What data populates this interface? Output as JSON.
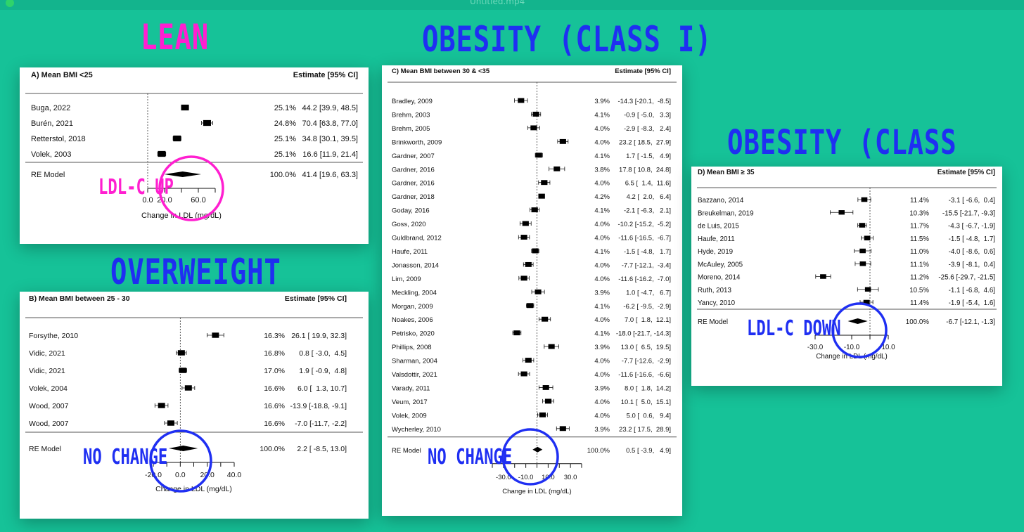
{
  "window": {
    "filename": "Untitled.mp4"
  },
  "categories": {
    "lean": "LEAN",
    "overweight": "OVERWEIGHT",
    "obesity1": "OBESITY (CLASS I)",
    "obesity2": "OBESITY (CLASS II)"
  },
  "annotations": {
    "lean": "LDL-C UP",
    "overweight": "NO CHANGE",
    "obesity1": "NO CHANGE",
    "obesity2": "LDL-C DOWN"
  },
  "colors": {
    "background": "#16c298",
    "pink": "#ff1fd0",
    "blue": "#1f2ff2"
  },
  "chart_data": [
    {
      "type": "forest",
      "title": "A) Mean BMI <25",
      "estimate_header": "Estimate [95% CI]",
      "xlabel": "Change in LDL (mg/dL)",
      "xlim": [
        0,
        80
      ],
      "ticks": [
        0,
        20,
        40,
        60,
        80
      ],
      "tick_labels": [
        "0.0",
        "20.0",
        "",
        "60.0",
        ""
      ],
      "studies": [
        {
          "label": "Buga, 2022",
          "weight": "25.1%",
          "est": 44.2,
          "lo": 39.9,
          "hi": 48.5,
          "ci_text": "44.2 [39.9, 48.5]"
        },
        {
          "label": "Burén, 2021",
          "weight": "24.8%",
          "est": 70.4,
          "lo": 63.8,
          "hi": 77.0,
          "ci_text": "70.4 [63.8, 77.0]"
        },
        {
          "label": "Retterstol, 2018",
          "weight": "25.1%",
          "est": 34.8,
          "lo": 30.1,
          "hi": 39.5,
          "ci_text": "34.8 [30.1, 39.5]"
        },
        {
          "label": "Volek, 2003",
          "weight": "25.1%",
          "est": 16.6,
          "lo": 11.9,
          "hi": 21.4,
          "ci_text": "16.6 [11.9, 21.4]"
        }
      ],
      "summary": {
        "label": "RE Model",
        "weight": "100.0%",
        "est": 41.4,
        "lo": 19.6,
        "hi": 63.3,
        "ci_text": "41.4 [19.6, 63.3]"
      }
    },
    {
      "type": "forest",
      "title": "B) Mean BMI between 25 - 30",
      "estimate_header": "Estimate [95% CI]",
      "xlabel": "Change in LDL (mg/dL)",
      "xlim": [
        -20,
        40
      ],
      "ticks": [
        -20,
        -10,
        0,
        10,
        20,
        30,
        40
      ],
      "tick_labels": [
        "-20.0",
        "",
        "0.0",
        "",
        "20.0",
        "",
        "40.0"
      ],
      "studies": [
        {
          "label": "Forsythe, 2010",
          "weight": "16.3%",
          "est": 26.1,
          "lo": 19.9,
          "hi": 32.3,
          "ci_text": "26.1 [ 19.9, 32.3]"
        },
        {
          "label": "Vidic, 2021",
          "weight": "16.8%",
          "est": 0.8,
          "lo": -3.0,
          "hi": 4.5,
          "ci_text": "0.8 [ -3.0,  4.5]"
        },
        {
          "label": "Vidic, 2021",
          "weight": "17.0%",
          "est": 1.9,
          "lo": -0.9,
          "hi": 4.8,
          "ci_text": "1.9 [ -0.9,  4.8]"
        },
        {
          "label": "Volek, 2004",
          "weight": "16.6%",
          "est": 6.0,
          "lo": 1.3,
          "hi": 10.7,
          "ci_text": "6.0 [  1.3, 10.7]"
        },
        {
          "label": "Wood, 2007",
          "weight": "16.6%",
          "est": -13.9,
          "lo": -18.8,
          "hi": -9.1,
          "ci_text": "-13.9 [-18.8, -9.1]"
        },
        {
          "label": "Wood, 2007",
          "weight": "16.6%",
          "est": -7.0,
          "lo": -11.7,
          "hi": -2.2,
          "ci_text": "-7.0 [-11.7, -2.2]"
        }
      ],
      "summary": {
        "label": "RE Model",
        "weight": "100.0%",
        "est": 2.2,
        "lo": -8.5,
        "hi": 13.0,
        "ci_text": "2.2 [ -8.5, 13.0]"
      }
    },
    {
      "type": "forest",
      "title": "C) Mean BMI between 30 & <35",
      "estimate_header": "Estimate [95% CI]",
      "xlabel": "Change in LDL (mg/dL)",
      "xlim": [
        -40,
        40
      ],
      "ticks": [
        -40,
        -30,
        -20,
        -10,
        0,
        10,
        20,
        30,
        40
      ],
      "tick_labels": [
        "",
        "-30.0",
        "",
        "-10.0",
        "",
        "10.0",
        "",
        "30.0",
        ""
      ],
      "studies": [
        {
          "label": "Bradley, 2009",
          "weight": "3.9%",
          "est": -14.3,
          "lo": -20.1,
          "hi": -8.5,
          "ci_text": "-14.3 [-20.1,  -8.5]"
        },
        {
          "label": "Brehm, 2003",
          "weight": "4.1%",
          "est": -0.9,
          "lo": -5.0,
          "hi": 3.3,
          "ci_text": "-0.9 [ -5.0,   3.3]"
        },
        {
          "label": "Brehm, 2005",
          "weight": "4.0%",
          "est": -2.9,
          "lo": -8.3,
          "hi": 2.4,
          "ci_text": "-2.9 [ -8.3,   2.4]"
        },
        {
          "label": "Brinkworth, 2009",
          "weight": "4.0%",
          "est": 23.2,
          "lo": 18.5,
          "hi": 27.9,
          "ci_text": "23.2 [ 18.5,  27.9]"
        },
        {
          "label": "Gardner, 2007",
          "weight": "4.1%",
          "est": 1.7,
          "lo": -1.5,
          "hi": 4.9,
          "ci_text": "1.7 [ -1.5,   4.9]"
        },
        {
          "label": "Gardner, 2016",
          "weight": "3.8%",
          "est": 17.8,
          "lo": 10.8,
          "hi": 24.8,
          "ci_text": "17.8 [ 10.8,  24.8]"
        },
        {
          "label": "Gardner, 2016",
          "weight": "4.0%",
          "est": 6.5,
          "lo": 1.4,
          "hi": 11.6,
          "ci_text": "6.5 [  1.4,  11.6]"
        },
        {
          "label": "Gardner, 2018",
          "weight": "4.2%",
          "est": 4.2,
          "lo": 2.0,
          "hi": 6.4,
          "ci_text": "4.2 [  2.0,   6.4]"
        },
        {
          "label": "Goday, 2016",
          "weight": "4.1%",
          "est": -2.1,
          "lo": -6.3,
          "hi": 2.1,
          "ci_text": "-2.1 [ -6.3,   2.1]"
        },
        {
          "label": "Goss, 2020",
          "weight": "4.0%",
          "est": -10.2,
          "lo": -15.2,
          "hi": -5.2,
          "ci_text": "-10.2 [-15.2,  -5.2]"
        },
        {
          "label": "Guldbrand, 2012",
          "weight": "4.0%",
          "est": -11.6,
          "lo": -16.5,
          "hi": -6.7,
          "ci_text": "-11.6 [-16.5,  -6.7]"
        },
        {
          "label": "Haufe, 2011",
          "weight": "4.1%",
          "est": -1.5,
          "lo": -4.8,
          "hi": 1.7,
          "ci_text": "-1.5 [ -4.8,   1.7]"
        },
        {
          "label": "Jonasson, 2014",
          "weight": "4.0%",
          "est": -7.7,
          "lo": -12.1,
          "hi": -3.4,
          "ci_text": "-7.7 [-12.1,  -3.4]"
        },
        {
          "label": "Lim, 2009",
          "weight": "4.0%",
          "est": -11.6,
          "lo": -16.2,
          "hi": -7.0,
          "ci_text": "-11.6 [-16.2,  -7.0]"
        },
        {
          "label": "Meckling, 2004",
          "weight": "3.9%",
          "est": 1.0,
          "lo": -4.7,
          "hi": 6.7,
          "ci_text": "1.0 [ -4.7,   6.7]"
        },
        {
          "label": "Morgan, 2009",
          "weight": "4.1%",
          "est": -6.2,
          "lo": -9.5,
          "hi": -2.9,
          "ci_text": "-6.2 [ -9.5,  -2.9]"
        },
        {
          "label": "Noakes, 2006",
          "weight": "4.0%",
          "est": 7.0,
          "lo": 1.8,
          "hi": 12.1,
          "ci_text": "7.0 [  1.8,  12.1]"
        },
        {
          "label": "Petrisko, 2020",
          "weight": "4.1%",
          "est": -18.0,
          "lo": -21.7,
          "hi": -14.3,
          "ci_text": "-18.0 [-21.7, -14.3]"
        },
        {
          "label": "Phillips, 2008",
          "weight": "3.9%",
          "est": 13.0,
          "lo": 6.5,
          "hi": 19.5,
          "ci_text": "13.0 [  6.5,  19.5]"
        },
        {
          "label": "Sharman, 2004",
          "weight": "4.0%",
          "est": -7.7,
          "lo": -12.6,
          "hi": -2.9,
          "ci_text": "-7.7 [-12.6,  -2.9]"
        },
        {
          "label": "Valsdottir, 2021",
          "weight": "4.0%",
          "est": -11.6,
          "lo": -16.6,
          "hi": -6.6,
          "ci_text": "-11.6 [-16.6,  -6.6]"
        },
        {
          "label": "Varady, 2011",
          "weight": "3.9%",
          "est": 8.0,
          "lo": 1.8,
          "hi": 14.2,
          "ci_text": "8.0 [  1.8,  14.2]"
        },
        {
          "label": "Veum, 2017",
          "weight": "4.0%",
          "est": 10.1,
          "lo": 5.0,
          "hi": 15.1,
          "ci_text": "10.1 [  5.0,  15.1]"
        },
        {
          "label": "Volek, 2009",
          "weight": "4.0%",
          "est": 5.0,
          "lo": 0.6,
          "hi": 9.4,
          "ci_text": "5.0 [  0.6,   9.4]"
        },
        {
          "label": "Wycherley, 2010",
          "weight": "3.9%",
          "est": 23.2,
          "lo": 17.5,
          "hi": 28.9,
          "ci_text": "23.2 [ 17.5,  28.9]"
        }
      ],
      "summary": {
        "label": "RE Model",
        "weight": "100.0%",
        "est": 0.5,
        "lo": -3.9,
        "hi": 4.9,
        "ci_text": "0.5 [ -3.9,   4.9]"
      }
    },
    {
      "type": "forest",
      "title": "D) Mean BMI ≥ 35",
      "estimate_header": "Estimate [95% CI]",
      "xlabel": "Change in LDL (mg/dL)",
      "xlim": [
        -30,
        10
      ],
      "ticks": [
        -30,
        -20,
        -10,
        0,
        10
      ],
      "tick_labels": [
        "-30.0",
        "",
        "-10.0",
        "",
        "10.0"
      ],
      "studies": [
        {
          "label": "Bazzano, 2014",
          "weight": "11.4%",
          "est": -3.1,
          "lo": -6.6,
          "hi": 0.4,
          "ci_text": "-3.1 [ -6.6,  0.4]"
        },
        {
          "label": "Breukelman, 2019",
          "weight": "10.3%",
          "est": -15.5,
          "lo": -21.7,
          "hi": -9.3,
          "ci_text": "-15.5 [-21.7, -9.3]"
        },
        {
          "label": "de Luis, 2015",
          "weight": "11.7%",
          "est": -4.3,
          "lo": -6.7,
          "hi": -1.9,
          "ci_text": "-4.3 [ -6.7, -1.9]"
        },
        {
          "label": "Haufe, 2011",
          "weight": "11.5%",
          "est": -1.5,
          "lo": -4.8,
          "hi": 1.7,
          "ci_text": "-1.5 [ -4.8,  1.7]"
        },
        {
          "label": "Hyde, 2019",
          "weight": "11.0%",
          "est": -4.0,
          "lo": -8.6,
          "hi": 0.6,
          "ci_text": "-4.0 [ -8.6,  0.6]"
        },
        {
          "label": "McAuley, 2005",
          "weight": "11.1%",
          "est": -3.9,
          "lo": -8.1,
          "hi": 0.4,
          "ci_text": "-3.9 [ -8.1,  0.4]"
        },
        {
          "label": "Moreno, 2014",
          "weight": "11.2%",
          "est": -25.6,
          "lo": -29.7,
          "hi": -21.5,
          "ci_text": "-25.6 [-29.7, -21.5]"
        },
        {
          "label": "Ruth, 2013",
          "weight": "10.5%",
          "est": -1.1,
          "lo": -6.8,
          "hi": 4.6,
          "ci_text": "-1.1 [ -6.8,  4.6]"
        },
        {
          "label": "Yancy, 2010",
          "weight": "11.4%",
          "est": -1.9,
          "lo": -5.4,
          "hi": 1.6,
          "ci_text": "-1.9 [ -5.4,  1.6]"
        }
      ],
      "summary": {
        "label": "RE Model",
        "weight": "100.0%",
        "est": -6.7,
        "lo": -12.1,
        "hi": -1.3,
        "ci_text": "-6.7 [-12.1, -1.3]"
      }
    }
  ]
}
